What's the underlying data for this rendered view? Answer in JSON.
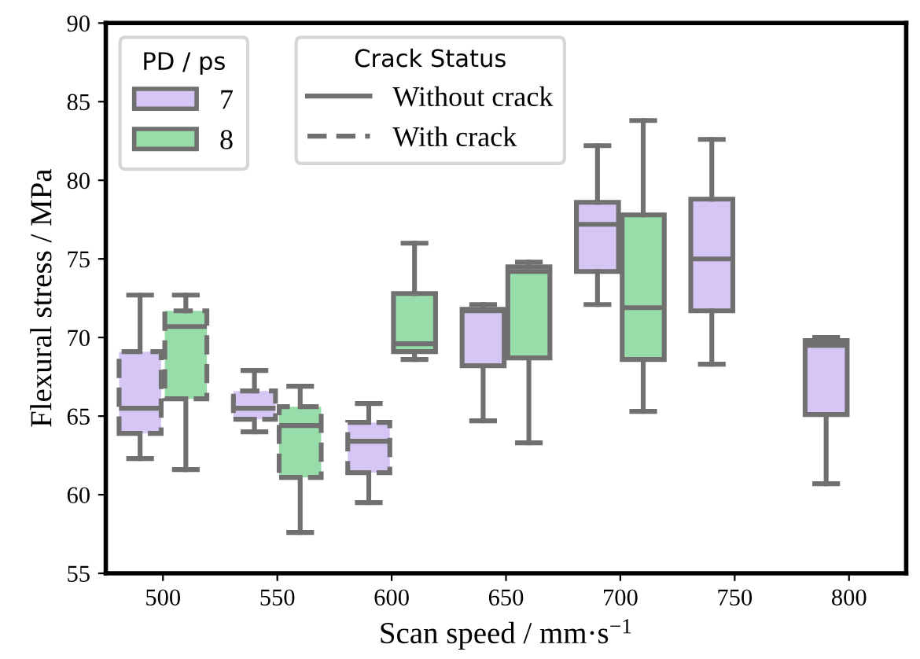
{
  "chart_data": {
    "type": "box",
    "xlabel": "Scan speed / mm·s$^{−1}$",
    "ylabel": "Flexural stress / MPa",
    "categories": [
      "500",
      "550",
      "600",
      "650",
      "700",
      "750",
      "800"
    ],
    "ylim": [
      55,
      90
    ],
    "yticks": [
      55,
      60,
      65,
      70,
      75,
      80,
      85,
      90
    ],
    "grid": false,
    "legend": "top left",
    "legend_title": "PD / ps",
    "annotations": [
      "Crack Status",
      "Without crack",
      "With crack"
    ],
    "series": [
      {
        "name": "7",
        "color": "#d5c6f5",
        "line_style": "solid",
        "boxes": [
          null,
          null,
          null,
          {
            "low": 64.7,
            "q1": 68.2,
            "median": 71.7,
            "q3": 71.8,
            "high": 72.1
          },
          {
            "low": 72.1,
            "q1": 74.2,
            "median": 77.2,
            "q3": 78.6,
            "high": 82.2
          },
          {
            "low": 68.3,
            "q1": 71.7,
            "median": 75.0,
            "q3": 78.8,
            "high": 82.6
          },
          {
            "low": 60.7,
            "q1": 65.1,
            "median": 69.5,
            "q3": 69.8,
            "high": 70.0
          }
        ]
      },
      {
        "name": "8",
        "color": "#98dcaa",
        "line_style": "solid",
        "boxes": [
          null,
          null,
          {
            "low": 68.6,
            "q1": 69.1,
            "median": 69.6,
            "q3": 72.8,
            "high": 76.0
          },
          {
            "low": 63.3,
            "q1": 68.7,
            "median": 74.2,
            "q3": 74.5,
            "high": 74.8
          },
          {
            "low": 65.3,
            "q1": 68.6,
            "median": 71.9,
            "q3": 77.8,
            "high": 83.8
          },
          null,
          null
        ]
      },
      {
        "color": "#d5c6f5",
        "line_style": "dashed",
        "boxes": [
          {
            "low": 62.3,
            "q1": 63.9,
            "median": 65.5,
            "q3": 69.1,
            "high": 72.7
          },
          {
            "low": 64.0,
            "q1": 64.8,
            "median": 65.5,
            "q3": 66.6,
            "high": 67.9
          },
          {
            "low": 59.5,
            "q1": 61.4,
            "median": 63.4,
            "q3": 64.6,
            "high": 65.8
          },
          null,
          null,
          null,
          null
        ]
      },
      {
        "color": "#98dcaa",
        "line_style": "dashed",
        "boxes": [
          {
            "low": 61.6,
            "q1": 66.1,
            "median": 70.7,
            "q3": 71.7,
            "high": 72.7
          },
          {
            "low": 57.6,
            "q1": 61.1,
            "median": 64.4,
            "q3": 65.6,
            "high": 66.9
          },
          null,
          null,
          null,
          null,
          null
        ]
      }
    ]
  }
}
